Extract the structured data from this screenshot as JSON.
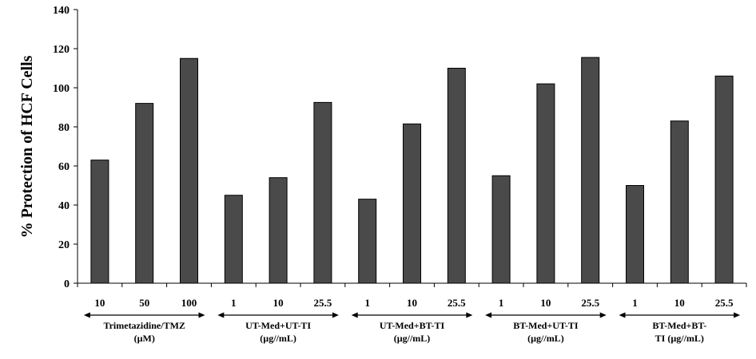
{
  "chart_data": {
    "type": "bar",
    "ylabel": "% Protection of HCF Cells",
    "ylim": [
      0,
      140
    ],
    "yticks": [
      0,
      20,
      40,
      60,
      80,
      100,
      120,
      140
    ],
    "grid": false,
    "bar_color": "#4a4a4a",
    "categories": [
      "10",
      "50",
      "100",
      "1",
      "10",
      "25.5",
      "1",
      "10",
      "25.5",
      "1",
      "10",
      "25.5",
      "1",
      "10",
      "25.5"
    ],
    "values": [
      63,
      92,
      115,
      45,
      54,
      92.5,
      43,
      81.5,
      110,
      55,
      102,
      115.5,
      50,
      83,
      106
    ],
    "groups": [
      {
        "lines": [
          "Trimetazidine/TMZ",
          "(µM)"
        ],
        "start": 0,
        "end": 2
      },
      {
        "lines": [
          "UT-Med+UT-TI",
          "(µg//mL)"
        ],
        "start": 3,
        "end": 5
      },
      {
        "lines": [
          "UT-Med+BT-TI",
          "(µg//mL)"
        ],
        "start": 6,
        "end": 8
      },
      {
        "lines": [
          "BT-Med+UT-TI",
          "(µg//mL)"
        ],
        "start": 9,
        "end": 11
      },
      {
        "lines": [
          "BT-Med+BT-",
          "TI (µg//mL)"
        ],
        "start": 12,
        "end": 14
      }
    ]
  }
}
